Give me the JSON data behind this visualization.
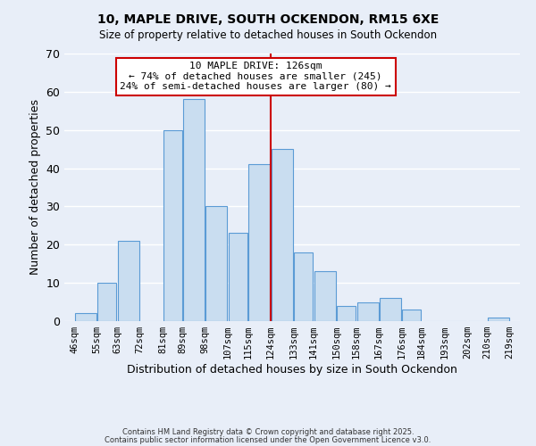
{
  "title_line1": "10, MAPLE DRIVE, SOUTH OCKENDON, RM15 6XE",
  "title_line2": "Size of property relative to detached houses in South Ockendon",
  "xlabel": "Distribution of detached houses by size in South Ockendon",
  "ylabel": "Number of detached properties",
  "bar_left_edges": [
    46,
    55,
    63,
    72,
    81,
    89,
    98,
    107,
    115,
    124,
    133,
    141,
    150,
    158,
    167,
    176,
    184,
    193,
    202,
    210
  ],
  "bar_widths": [
    9,
    8,
    9,
    9,
    8,
    9,
    9,
    8,
    9,
    9,
    8,
    9,
    8,
    9,
    9,
    8,
    9,
    9,
    8,
    9
  ],
  "bar_heights": [
    2,
    10,
    21,
    0,
    50,
    58,
    30,
    23,
    41,
    45,
    18,
    13,
    4,
    5,
    6,
    3,
    0,
    0,
    0,
    1
  ],
  "bar_color": "#c9ddf0",
  "bar_edge_color": "#5b9bd5",
  "xtick_labels": [
    "46sqm",
    "55sqm",
    "63sqm",
    "72sqm",
    "81sqm",
    "89sqm",
    "98sqm",
    "107sqm",
    "115sqm",
    "124sqm",
    "133sqm",
    "141sqm",
    "150sqm",
    "158sqm",
    "167sqm",
    "176sqm",
    "184sqm",
    "193sqm",
    "202sqm",
    "210sqm",
    "219sqm"
  ],
  "xtick_positions": [
    46,
    55,
    63,
    72,
    81,
    89,
    98,
    107,
    115,
    124,
    133,
    141,
    150,
    158,
    167,
    176,
    184,
    193,
    202,
    210,
    219
  ],
  "ylim": [
    0,
    70
  ],
  "yticks": [
    0,
    10,
    20,
    30,
    40,
    50,
    60,
    70
  ],
  "vline_x": 124,
  "vline_color": "#cc0000",
  "annotation_title": "10 MAPLE DRIVE: 126sqm",
  "annotation_line1": "← 74% of detached houses are smaller (245)",
  "annotation_line2": "24% of semi-detached houses are larger (80) →",
  "annotation_box_color": "#ffffff",
  "annotation_box_edge": "#cc0000",
  "footer_line1": "Contains HM Land Registry data © Crown copyright and database right 2025.",
  "footer_line2": "Contains public sector information licensed under the Open Government Licence v3.0.",
  "bg_color": "#e8eef8",
  "grid_color": "#ffffff"
}
